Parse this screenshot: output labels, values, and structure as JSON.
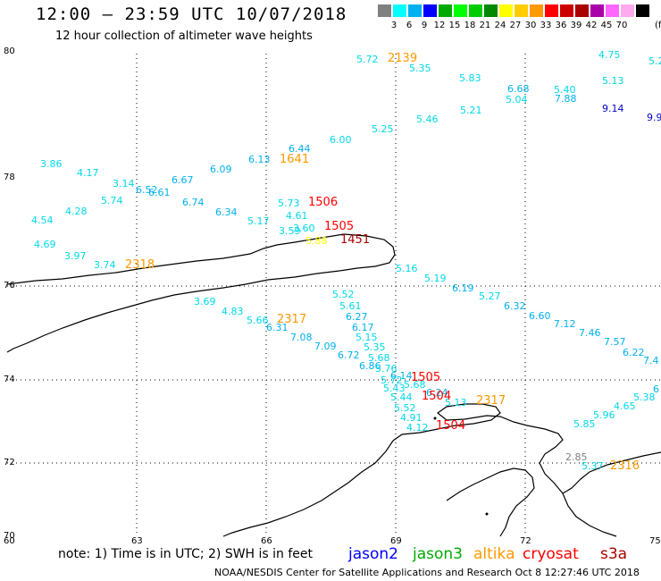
{
  "header": {
    "title": "12:00 – 23:59 UTC 10/07/2018",
    "subtitle": "12 hour collection of altimeter wave heights"
  },
  "color_scale": {
    "unit": "(ft)",
    "colors": [
      "#808080",
      "#00ffff",
      "#00b0f0",
      "#0000ff",
      "#00aa00",
      "#00ff00",
      "#00cc00",
      "#008800",
      "#ffff00",
      "#ffcc00",
      "#ff9900",
      "#ff0000",
      "#cc0000",
      "#aa0000",
      "#aa00aa",
      "#ff66ff",
      "#ffaaee",
      "#000000"
    ],
    "labels": [
      "3",
      "6",
      "9",
      "12",
      "15",
      "18",
      "21",
      "24",
      "27",
      "30",
      "33",
      "36",
      "39",
      "42",
      "45",
      "70"
    ]
  },
  "axes": {
    "lat_labels": [
      "80",
      "78",
      "76",
      "74",
      "72",
      "70"
    ],
    "lon_labels": [
      "60",
      "63",
      "66",
      "69",
      "72",
      "75"
    ]
  },
  "observations": [
    {
      "v": "5.72",
      "c": "#00d8e8"
    },
    {
      "v": "5.35",
      "c": "#00d8e8"
    },
    {
      "v": "4.75",
      "c": "#00d8e8"
    },
    {
      "v": "5.2",
      "c": "#00d8e8"
    },
    {
      "v": "5.83",
      "c": "#00d8e8"
    },
    {
      "v": "5.13",
      "c": "#00d8e8"
    },
    {
      "v": "6.68",
      "c": "#00b0f0"
    },
    {
      "v": "5.40",
      "c": "#00d8e8"
    },
    {
      "v": "5.04",
      "c": "#00d8e8"
    },
    {
      "v": "7.88",
      "c": "#00b0f0"
    },
    {
      "v": "9.14",
      "c": "#0000cc"
    },
    {
      "v": "9.9",
      "c": "#0000cc"
    },
    {
      "v": "5.21",
      "c": "#00d8e8"
    },
    {
      "v": "5.46",
      "c": "#00d8e8"
    },
    {
      "v": "5.25",
      "c": "#00d8e8"
    },
    {
      "v": "6.00",
      "c": "#00d8e8"
    },
    {
      "v": "6.44",
      "c": "#00b0f0"
    },
    {
      "v": "6.13",
      "c": "#00b0f0"
    },
    {
      "v": "3.86",
      "c": "#00d8e8"
    },
    {
      "v": "4.17",
      "c": "#00d8e8"
    },
    {
      "v": "6.09",
      "c": "#00b0f0"
    },
    {
      "v": "3.14",
      "c": "#00d8e8"
    },
    {
      "v": "6.67",
      "c": "#00b0f0"
    },
    {
      "v": "6.52",
      "c": "#00b0f0"
    },
    {
      "v": "6.61",
      "c": "#00b0f0"
    },
    {
      "v": "5.74",
      "c": "#00d8e8"
    },
    {
      "v": "6.74",
      "c": "#00b0f0"
    },
    {
      "v": "6.34",
      "c": "#00b0f0"
    },
    {
      "v": "5.73",
      "c": "#00d8e8"
    },
    {
      "v": "4.28",
      "c": "#00d8e8"
    },
    {
      "v": "4.54",
      "c": "#00d8e8"
    },
    {
      "v": "5.17",
      "c": "#00d8e8"
    },
    {
      "v": "4.61",
      "c": "#00d8e8"
    },
    {
      "v": "3.59",
      "c": "#00d8e8"
    },
    {
      "v": "3.60",
      "c": "#00d8e8"
    },
    {
      "v": "4.69",
      "c": "#00d8e8"
    },
    {
      "v": "3.97",
      "c": "#00d8e8"
    },
    {
      "v": "3.74",
      "c": "#00d8e8"
    },
    {
      "v": "5.16",
      "c": "#00d8e8"
    },
    {
      "v": "5.19",
      "c": "#00d8e8"
    },
    {
      "v": "6.19",
      "c": "#00b0f0"
    },
    {
      "v": "5.27",
      "c": "#00d8e8"
    },
    {
      "v": "5.52",
      "c": "#00d8e8"
    },
    {
      "v": "6.32",
      "c": "#00b0f0"
    },
    {
      "v": "3.69",
      "c": "#00d8e8"
    },
    {
      "v": "5.61",
      "c": "#00d8e8"
    },
    {
      "v": "6.60",
      "c": "#00b0f0"
    },
    {
      "v": "4.83",
      "c": "#00d8e8"
    },
    {
      "v": "5.66",
      "c": "#00d8e8"
    },
    {
      "v": "6.27",
      "c": "#00b0f0"
    },
    {
      "v": "7.12",
      "c": "#00b0f0"
    },
    {
      "v": "6.31",
      "c": "#00b0f0"
    },
    {
      "v": "6.17",
      "c": "#00b0f0"
    },
    {
      "v": "7.46",
      "c": "#00b0f0"
    },
    {
      "v": "7.08",
      "c": "#00b0f0"
    },
    {
      "v": "5.15",
      "c": "#00d8e8"
    },
    {
      "v": "7.57",
      "c": "#00b0f0"
    },
    {
      "v": "7.09",
      "c": "#00b0f0"
    },
    {
      "v": "5.35",
      "c": "#00d8e8"
    },
    {
      "v": "6.22",
      "c": "#00b0f0"
    },
    {
      "v": "6.72",
      "c": "#00b0f0"
    },
    {
      "v": "5.68",
      "c": "#00d8e8"
    },
    {
      "v": "7.4",
      "c": "#00b0f0"
    },
    {
      "v": "6.86",
      "c": "#00b0f0"
    },
    {
      "v": "5.76",
      "c": "#00d8e8"
    },
    {
      "v": "6.14",
      "c": "#00b0f0"
    },
    {
      "v": "5.72",
      "c": "#00d8e8"
    },
    {
      "v": "5.68",
      "c": "#00d8e8"
    },
    {
      "v": "5.43",
      "c": "#00d8e8"
    },
    {
      "v": "6.24",
      "c": "#00b0f0"
    },
    {
      "v": "6",
      "c": "#00b0f0"
    },
    {
      "v": "5.38",
      "c": "#00d8e8"
    },
    {
      "v": "5.44",
      "c": "#00d8e8"
    },
    {
      "v": "5.13",
      "c": "#00d8e8"
    },
    {
      "v": "4.65",
      "c": "#00d8e8"
    },
    {
      "v": "5.52",
      "c": "#00d8e8"
    },
    {
      "v": "5.96",
      "c": "#00d8e8"
    },
    {
      "v": "4.91",
      "c": "#00d8e8"
    },
    {
      "v": "5.85",
      "c": "#00d8e8"
    },
    {
      "v": "4.12",
      "c": "#00d8e8"
    },
    {
      "v": "2.85",
      "c": "#808080"
    },
    {
      "v": "5.37",
      "c": "#00d8e8"
    },
    {
      "v": "5.88",
      "c": "#ffff00"
    }
  ],
  "pass_ids": [
    {
      "v": "2139",
      "c": "#ff9900"
    },
    {
      "v": "1641",
      "c": "#ff9900"
    },
    {
      "v": "1506",
      "c": "#ff0000"
    },
    {
      "v": "1505",
      "c": "#ff0000"
    },
    {
      "v": "1451",
      "c": "#aa0000"
    },
    {
      "v": "2318",
      "c": "#ff9900"
    },
    {
      "v": "2317",
      "c": "#ff9900"
    },
    {
      "v": "1505",
      "c": "#ff0000"
    },
    {
      "v": "1504",
      "c": "#ff0000"
    },
    {
      "v": "2317",
      "c": "#ff9900"
    },
    {
      "v": "1504",
      "c": "#ff0000"
    },
    {
      "v": "2316",
      "c": "#ff9900"
    }
  ],
  "footer": {
    "note": "note: 1) Time is in UTC; 2) SWH is in feet",
    "legend": [
      {
        "name": "jason2",
        "color": "#0000ff"
      },
      {
        "name": "jason3",
        "color": "#00aa00"
      },
      {
        "name": "altika",
        "color": "#ff9900"
      },
      {
        "name": "cryosat",
        "color": "#ff0000"
      },
      {
        "name": "s3a",
        "color": "#aa0000"
      }
    ],
    "credit": "NOAA/NESDIS Center for Satellite Applications and Research    Oct  8 12:27:46 UTC 2018"
  }
}
